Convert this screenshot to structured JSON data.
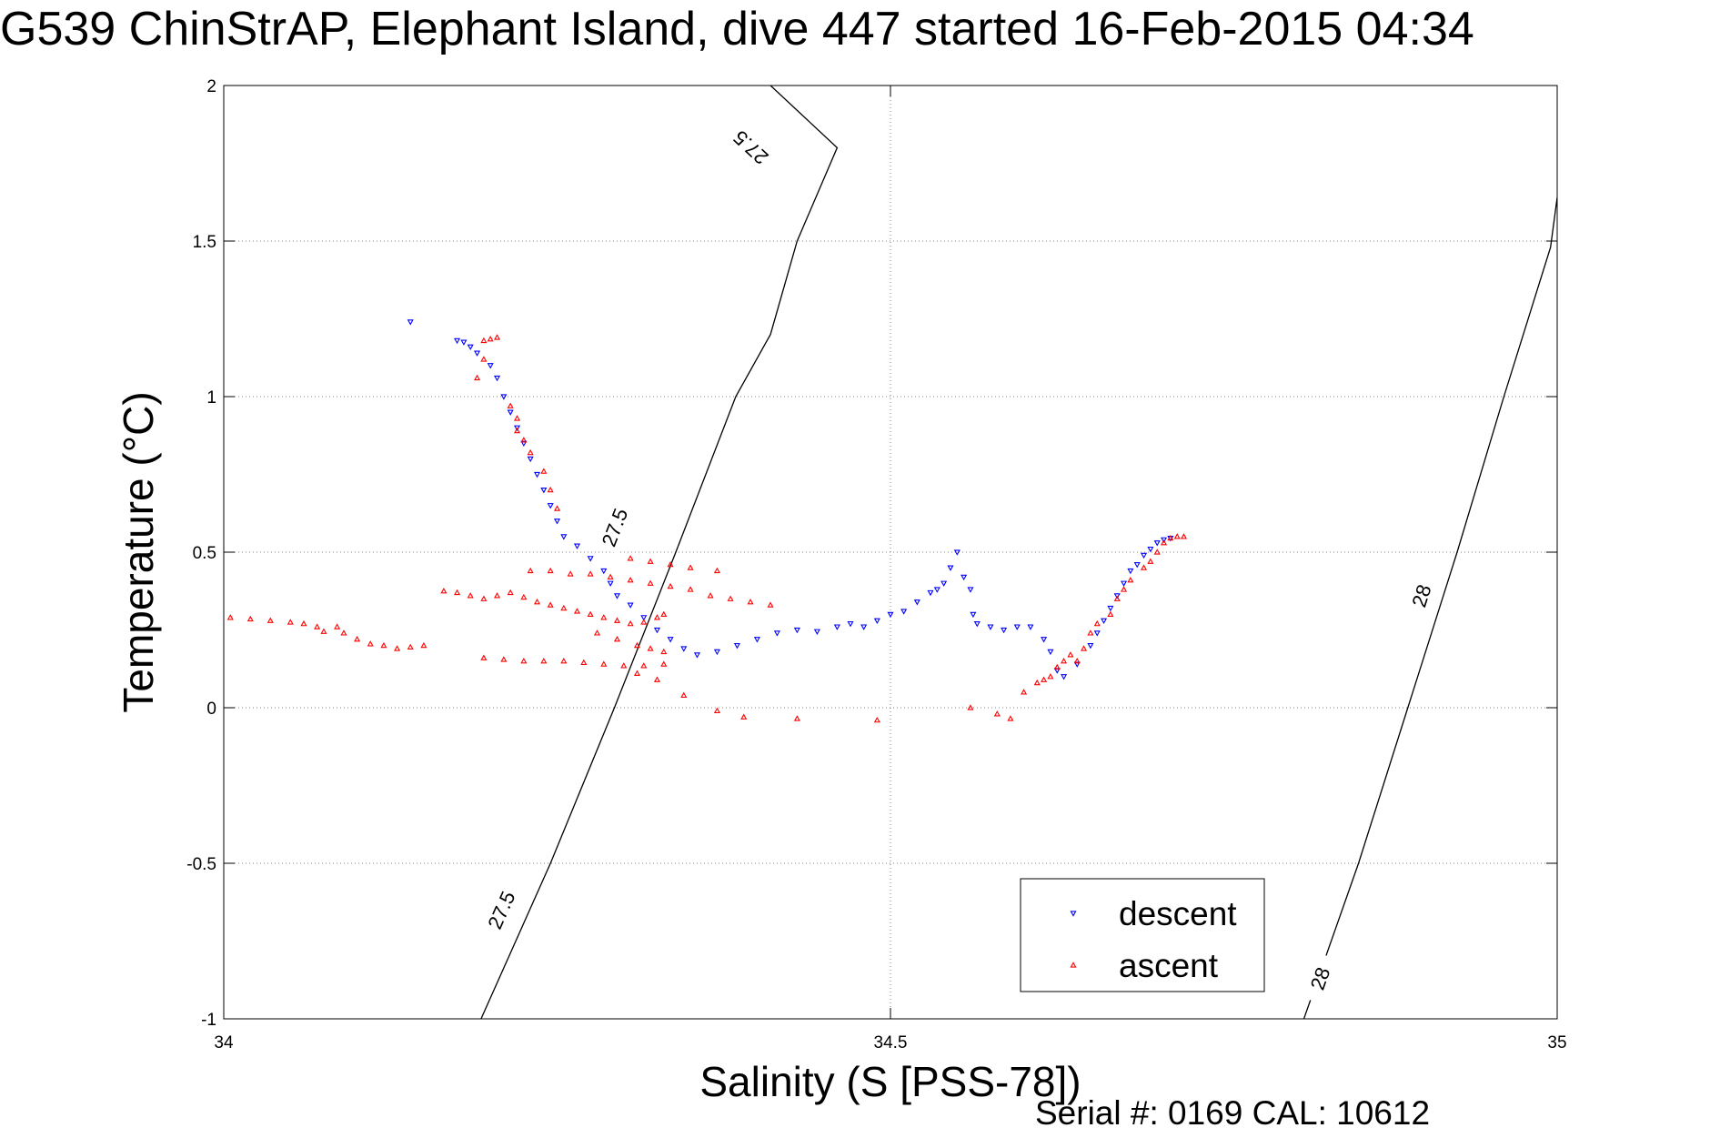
{
  "chart_data": {
    "type": "scatter",
    "title": "G539 ChinStrAP, Elephant Island, dive 447 started 16-Feb-2015 04:34",
    "xlabel": "Salinity (S [PSS-78])",
    "ylabel": "Temperature (°C)",
    "xlim": [
      34,
      35
    ],
    "ylim": [
      -1,
      2
    ],
    "xticks": [
      34,
      34.5,
      35
    ],
    "yticks": [
      -1,
      -0.5,
      0,
      0.5,
      1,
      1.5,
      2
    ],
    "xtick_labels": [
      "34",
      "34.5",
      "35"
    ],
    "ytick_labels": [
      "-1",
      "-0.5",
      "0",
      "0.5",
      "1",
      "1.5",
      "2"
    ],
    "grid": true,
    "legend_position": "bottom-right",
    "footer": "Serial #: 0169 CAL: 10612",
    "series": [
      {
        "name": "descent",
        "marker": "triangle-down",
        "color": "#0000ff",
        "points": [
          [
            34.14,
            1.24
          ],
          [
            34.175,
            1.18
          ],
          [
            34.18,
            1.175
          ],
          [
            34.185,
            1.16
          ],
          [
            34.19,
            1.14
          ],
          [
            34.2,
            1.1
          ],
          [
            34.205,
            1.06
          ],
          [
            34.21,
            1.0
          ],
          [
            34.215,
            0.95
          ],
          [
            34.22,
            0.9
          ],
          [
            34.225,
            0.85
          ],
          [
            34.23,
            0.8
          ],
          [
            34.235,
            0.75
          ],
          [
            34.24,
            0.7
          ],
          [
            34.245,
            0.65
          ],
          [
            34.25,
            0.6
          ],
          [
            34.255,
            0.55
          ],
          [
            34.265,
            0.52
          ],
          [
            34.275,
            0.48
          ],
          [
            34.285,
            0.44
          ],
          [
            34.29,
            0.4
          ],
          [
            34.295,
            0.36
          ],
          [
            34.305,
            0.33
          ],
          [
            34.315,
            0.29
          ],
          [
            34.325,
            0.25
          ],
          [
            34.335,
            0.22
          ],
          [
            34.345,
            0.19
          ],
          [
            34.355,
            0.17
          ],
          [
            34.37,
            0.18
          ],
          [
            34.385,
            0.2
          ],
          [
            34.4,
            0.22
          ],
          [
            34.415,
            0.24
          ],
          [
            34.43,
            0.25
          ],
          [
            34.445,
            0.245
          ],
          [
            34.46,
            0.26
          ],
          [
            34.47,
            0.27
          ],
          [
            34.48,
            0.26
          ],
          [
            34.49,
            0.28
          ],
          [
            34.5,
            0.3
          ],
          [
            34.51,
            0.31
          ],
          [
            34.52,
            0.34
          ],
          [
            34.53,
            0.37
          ],
          [
            34.535,
            0.38
          ],
          [
            34.54,
            0.4
          ],
          [
            34.545,
            0.45
          ],
          [
            34.55,
            0.5
          ],
          [
            34.555,
            0.42
          ],
          [
            34.56,
            0.38
          ],
          [
            34.562,
            0.3
          ],
          [
            34.565,
            0.27
          ],
          [
            34.575,
            0.26
          ],
          [
            34.585,
            0.25
          ],
          [
            34.595,
            0.26
          ],
          [
            34.605,
            0.26
          ],
          [
            34.615,
            0.22
          ],
          [
            34.62,
            0.18
          ],
          [
            34.625,
            0.12
          ],
          [
            34.63,
            0.1
          ],
          [
            34.64,
            0.14
          ],
          [
            34.65,
            0.2
          ],
          [
            34.655,
            0.24
          ],
          [
            34.66,
            0.28
          ],
          [
            34.665,
            0.32
          ],
          [
            34.67,
            0.36
          ],
          [
            34.675,
            0.4
          ],
          [
            34.68,
            0.44
          ],
          [
            34.685,
            0.46
          ],
          [
            34.69,
            0.49
          ],
          [
            34.695,
            0.51
          ],
          [
            34.7,
            0.53
          ],
          [
            34.705,
            0.54
          ],
          [
            34.71,
            0.545
          ]
        ]
      },
      {
        "name": "ascent",
        "marker": "triangle-up",
        "color": "#ff0000",
        "points": [
          [
            34.005,
            0.29
          ],
          [
            34.02,
            0.285
          ],
          [
            34.035,
            0.28
          ],
          [
            34.05,
            0.275
          ],
          [
            34.06,
            0.27
          ],
          [
            34.07,
            0.26
          ],
          [
            34.075,
            0.245
          ],
          [
            34.085,
            0.26
          ],
          [
            34.09,
            0.24
          ],
          [
            34.1,
            0.22
          ],
          [
            34.11,
            0.205
          ],
          [
            34.12,
            0.2
          ],
          [
            34.13,
            0.19
          ],
          [
            34.14,
            0.195
          ],
          [
            34.15,
            0.2
          ],
          [
            34.165,
            0.375
          ],
          [
            34.175,
            0.37
          ],
          [
            34.185,
            0.36
          ],
          [
            34.195,
            0.35
          ],
          [
            34.205,
            0.36
          ],
          [
            34.215,
            0.37
          ],
          [
            34.225,
            0.355
          ],
          [
            34.235,
            0.34
          ],
          [
            34.245,
            0.33
          ],
          [
            34.255,
            0.32
          ],
          [
            34.265,
            0.31
          ],
          [
            34.275,
            0.3
          ],
          [
            34.285,
            0.29
          ],
          [
            34.295,
            0.28
          ],
          [
            34.305,
            0.27
          ],
          [
            34.315,
            0.275
          ],
          [
            34.325,
            0.29
          ],
          [
            34.33,
            0.3
          ],
          [
            34.23,
            0.44
          ],
          [
            34.245,
            0.44
          ],
          [
            34.26,
            0.43
          ],
          [
            34.275,
            0.43
          ],
          [
            34.29,
            0.42
          ],
          [
            34.305,
            0.41
          ],
          [
            34.32,
            0.4
          ],
          [
            34.335,
            0.39
          ],
          [
            34.35,
            0.38
          ],
          [
            34.365,
            0.36
          ],
          [
            34.38,
            0.35
          ],
          [
            34.395,
            0.34
          ],
          [
            34.41,
            0.33
          ],
          [
            34.195,
            0.16
          ],
          [
            34.21,
            0.155
          ],
          [
            34.225,
            0.15
          ],
          [
            34.24,
            0.15
          ],
          [
            34.255,
            0.15
          ],
          [
            34.27,
            0.145
          ],
          [
            34.285,
            0.14
          ],
          [
            34.3,
            0.135
          ],
          [
            34.315,
            0.135
          ],
          [
            34.33,
            0.14
          ],
          [
            34.28,
            0.24
          ],
          [
            34.295,
            0.22
          ],
          [
            34.31,
            0.2
          ],
          [
            34.32,
            0.19
          ],
          [
            34.33,
            0.18
          ],
          [
            34.305,
            0.48
          ],
          [
            34.32,
            0.47
          ],
          [
            34.335,
            0.46
          ],
          [
            34.35,
            0.45
          ],
          [
            34.37,
            0.44
          ],
          [
            34.31,
            0.11
          ],
          [
            34.325,
            0.09
          ],
          [
            34.345,
            0.04
          ],
          [
            34.37,
            -0.01
          ],
          [
            34.39,
            -0.03
          ],
          [
            34.43,
            -0.035
          ],
          [
            34.49,
            -0.04
          ],
          [
            34.56,
            0.0
          ],
          [
            34.58,
            -0.02
          ],
          [
            34.59,
            -0.035
          ],
          [
            34.6,
            0.05
          ],
          [
            34.195,
            1.18
          ],
          [
            34.2,
            1.185
          ],
          [
            34.205,
            1.19
          ],
          [
            34.195,
            1.12
          ],
          [
            34.19,
            1.06
          ],
          [
            34.215,
            0.97
          ],
          [
            34.22,
            0.93
          ],
          [
            34.22,
            0.89
          ],
          [
            34.225,
            0.86
          ],
          [
            34.23,
            0.82
          ],
          [
            34.24,
            0.76
          ],
          [
            34.245,
            0.7
          ],
          [
            34.25,
            0.64
          ],
          [
            34.61,
            0.08
          ],
          [
            34.615,
            0.09
          ],
          [
            34.62,
            0.1
          ],
          [
            34.625,
            0.13
          ],
          [
            34.63,
            0.15
          ],
          [
            34.635,
            0.17
          ],
          [
            34.64,
            0.15
          ],
          [
            34.645,
            0.19
          ],
          [
            34.65,
            0.24
          ],
          [
            34.655,
            0.27
          ],
          [
            34.665,
            0.3
          ],
          [
            34.67,
            0.35
          ],
          [
            34.675,
            0.38
          ],
          [
            34.68,
            0.41
          ],
          [
            34.69,
            0.45
          ],
          [
            34.695,
            0.47
          ],
          [
            34.7,
            0.5
          ],
          [
            34.705,
            0.53
          ],
          [
            34.71,
            0.545
          ],
          [
            34.715,
            0.55
          ],
          [
            34.72,
            0.55
          ]
        ]
      }
    ],
    "contours": [
      {
        "level": "27.5",
        "points": [
          [
            34.193,
            -1
          ],
          [
            34.245,
            -0.5
          ],
          [
            34.293,
            0.0
          ],
          [
            34.339,
            0.5
          ],
          [
            34.384,
            1.0
          ],
          [
            34.43,
            1.5
          ],
          [
            34.41,
            1.2
          ],
          [
            34.46,
            1.8
          ],
          [
            34.41,
            2
          ]
        ],
        "labels": [
          {
            "text": "27.5",
            "x": 34.208,
            "y": -0.65
          },
          {
            "text": "27.5",
            "x": 34.293,
            "y": 0.58
          },
          {
            "text": "27.5",
            "x": 34.395,
            "y": 1.8
          }
        ]
      },
      {
        "level": "28",
        "points": [
          [
            34.81,
            -1
          ],
          [
            34.851,
            -0.5
          ],
          [
            34.888,
            0.0
          ],
          [
            34.925,
            0.5
          ],
          [
            34.96,
            1.0
          ],
          [
            34.995,
            1.48
          ],
          [
            35.0,
            1.64
          ]
        ],
        "labels": [
          {
            "text": "28",
            "x": 34.822,
            "y": -0.87
          },
          {
            "text": "28",
            "x": 34.898,
            "y": 0.36
          }
        ]
      }
    ]
  }
}
